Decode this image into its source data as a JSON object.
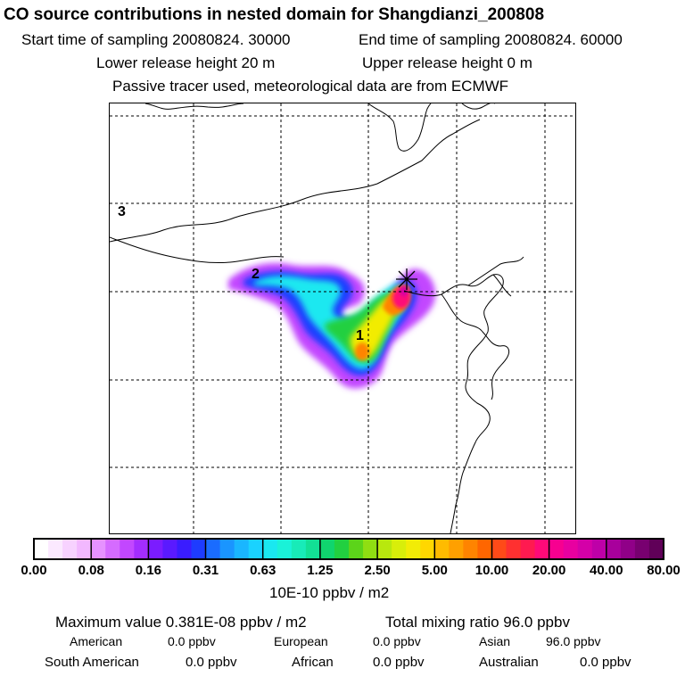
{
  "header": {
    "title": "CO  source contributions in nested domain for Shangdianzi_200808",
    "start_time": "Start time of sampling 20080824. 30000",
    "end_time": "End time of sampling 20080824. 60000",
    "lower_height": "Lower release height   20 m",
    "upper_height": "Upper release height    0 m",
    "tracer_note": "Passive tracer used, meteorological data are from ECMWF"
  },
  "map": {
    "region_labels": [
      "1",
      "2",
      "3"
    ],
    "receptor_icon": "asterisk-receptor-icon"
  },
  "colorbar": {
    "ticks": [
      "0.00",
      "0.08",
      "0.16",
      "0.31",
      "0.63",
      "1.25",
      "2.50",
      "5.00",
      "10.00",
      "20.00",
      "40.00",
      "80.00"
    ],
    "unit": "10E-10 ppbv / m2",
    "colors": [
      "#ffffff",
      "#fbe9ff",
      "#f7d2ff",
      "#f2b8ff",
      "#e692ff",
      "#d56bff",
      "#c247ff",
      "#a32dff",
      "#7b1cff",
      "#5a1aff",
      "#3a1cff",
      "#1e3cff",
      "#1a6cff",
      "#1a95ff",
      "#1ab6ff",
      "#1ad2ff",
      "#1ae8f0",
      "#1af2d8",
      "#18ebb8",
      "#12e095",
      "#10d56e",
      "#22d040",
      "#5cd41a",
      "#90de12",
      "#b8e80e",
      "#d8ee0a",
      "#f2ec06",
      "#ffd700",
      "#ffbb00",
      "#ffa000",
      "#ff8400",
      "#ff6600",
      "#ff4a18",
      "#ff3030",
      "#ff1a50",
      "#ff0a78",
      "#f70090",
      "#e800a0",
      "#d400a8",
      "#be00a8",
      "#a8009c",
      "#900088",
      "#780070",
      "#600058"
    ]
  },
  "footer": {
    "max_value": "Maximum value  0.381E-08 ppbv / m2",
    "total_mixing": "Total mixing ratio       96.0 ppbv",
    "american_label": "American",
    "american_value": "0.0 ppbv",
    "european_label": "European",
    "european_value": "0.0 ppbv",
    "asian_label": "Asian",
    "asian_value": "96.0 ppbv",
    "south_american_label": "South American",
    "south_american_value": "0.0 ppbv",
    "african_label": "African",
    "african_value": "0.0 ppbv",
    "australian_label": "Australian",
    "australian_value": "0.0 ppbv"
  }
}
